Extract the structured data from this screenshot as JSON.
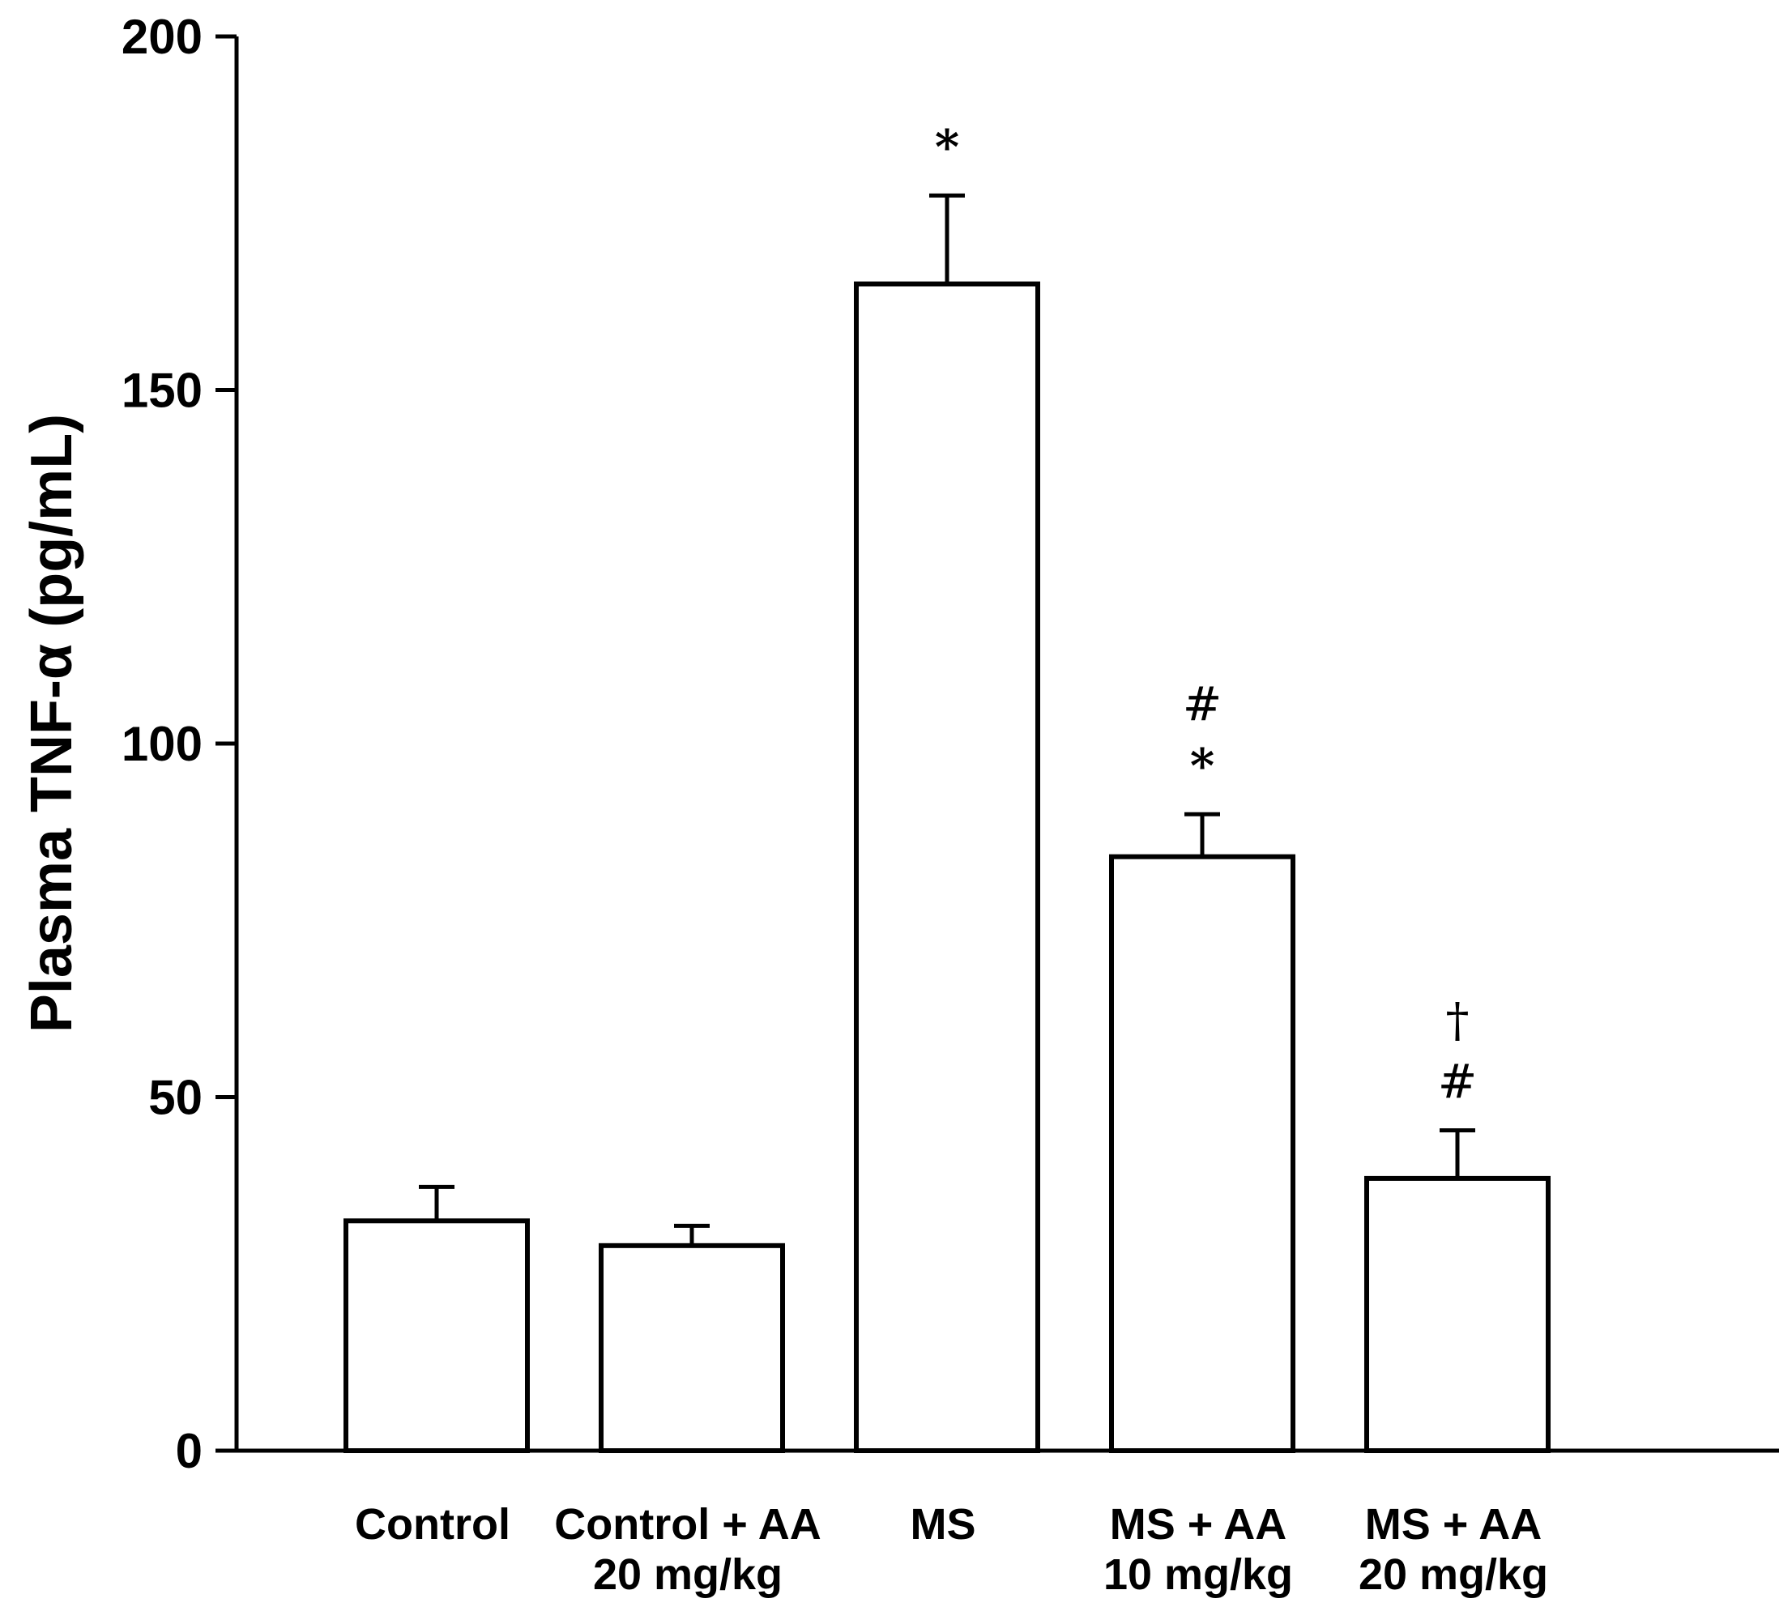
{
  "chart_data": {
    "type": "bar",
    "title": "",
    "xlabel": "",
    "ylabel": "Plasma TNF-α (pg/mL)",
    "ylim": [
      0,
      200
    ],
    "yticks": [
      0,
      50,
      100,
      150,
      200
    ],
    "ytick_labels": [
      "0",
      "50",
      "100",
      "150",
      "200"
    ],
    "grid": false,
    "legend": "none",
    "bar_fill": "#ffffff",
    "bar_stroke": "#000000",
    "categories": [
      {
        "line1": "Control",
        "line2": ""
      },
      {
        "line1": "Control + AA",
        "line2": "20 mg/kg"
      },
      {
        "line1": "MS",
        "line2": ""
      },
      {
        "line1": "MS + AA",
        "line2": "10 mg/kg"
      },
      {
        "line1": "MS + AA",
        "line2": "20 mg/kg"
      }
    ],
    "values": [
      32.5,
      29,
      165,
      84,
      38.5
    ],
    "error_upper": [
      4.8,
      2.8,
      12.5,
      6,
      6.8
    ],
    "annotations": [
      [],
      [],
      [
        "*"
      ],
      [
        "#",
        "*"
      ],
      [
        "†",
        "#"
      ]
    ]
  }
}
